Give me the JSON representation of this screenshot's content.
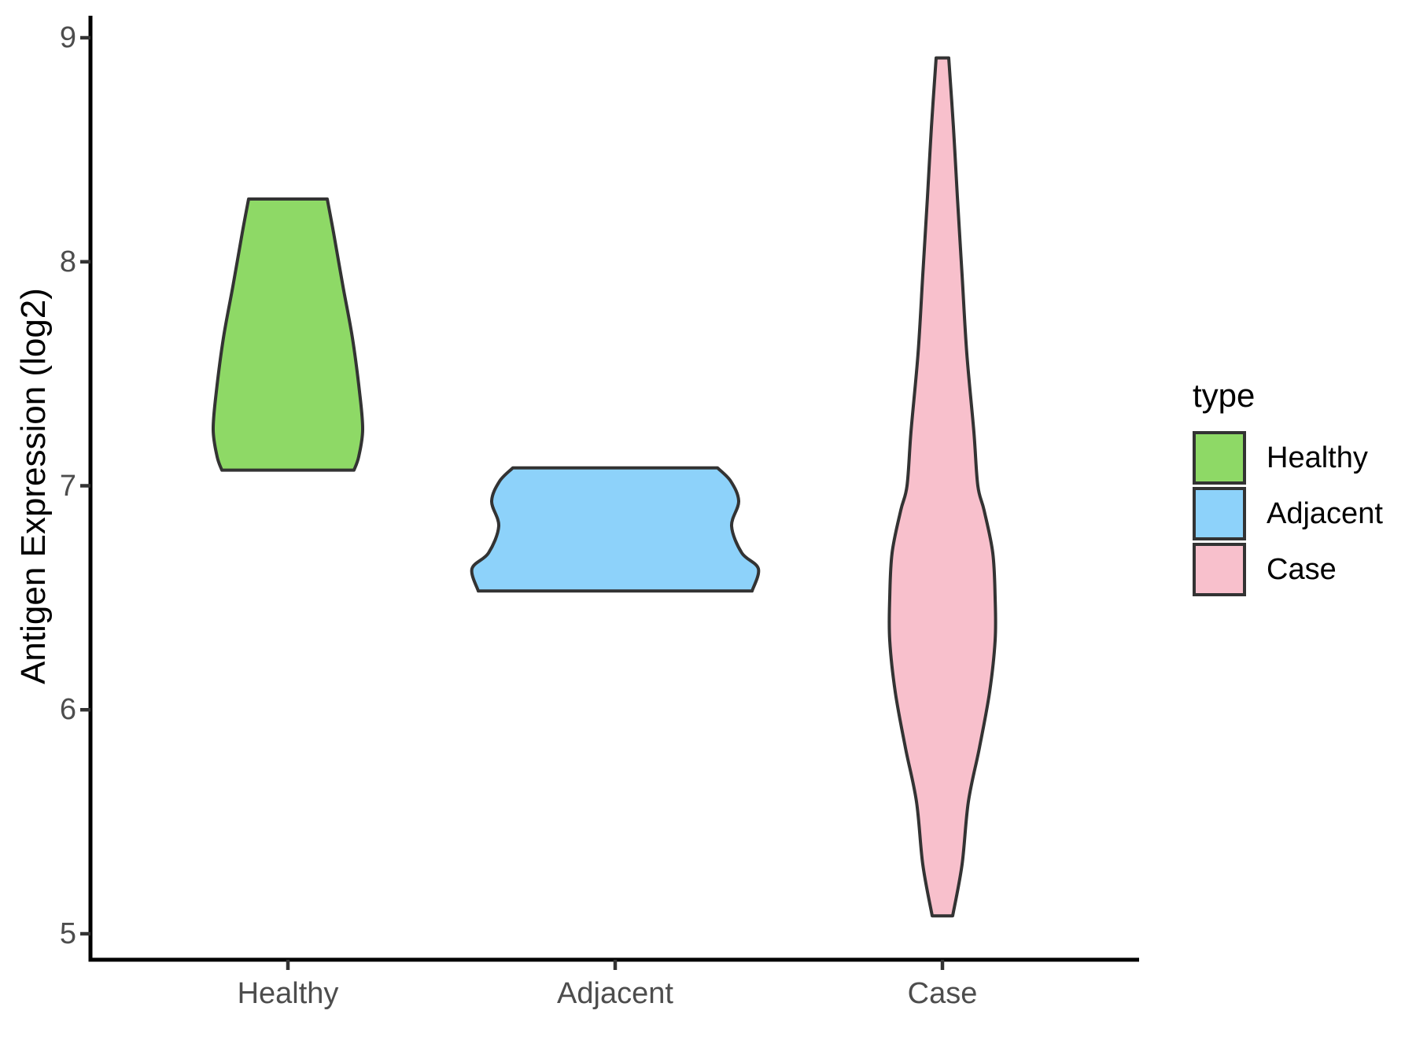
{
  "chart_data": {
    "type": "violin",
    "title": "",
    "grid": false,
    "panel_background": "#FFFFFF",
    "axis_color": "#000000",
    "tick_color": "#333333",
    "tick_label_color": "#4D4D4D",
    "outline_color": "#333333",
    "y_axis": {
      "label": "Antigen Expression (log2)",
      "tick_values": [
        9,
        8,
        7,
        6,
        5
      ],
      "tick_labels": [
        "9",
        "8",
        "7",
        "6",
        "5"
      ],
      "range": [
        4.9,
        9.1
      ]
    },
    "x_axis": {
      "label": "",
      "categories": [
        "Healthy",
        "Adjacent",
        "Case"
      ]
    },
    "legend": {
      "title": "type",
      "position": "right",
      "entries": [
        {
          "label": "Healthy",
          "color": "#8ED966"
        },
        {
          "label": "Adjacent",
          "color": "#8DD2FA"
        },
        {
          "label": "Case",
          "color": "#F8C0CC"
        }
      ]
    },
    "profile_format": "[y_value_log2, half_width_px]",
    "series": [
      {
        "name": "Healthy",
        "fill": "#8ED966",
        "observed_range": [
          7.07,
          8.28
        ],
        "profile": [
          [
            8.28,
            50
          ],
          [
            8.13,
            58
          ],
          [
            7.89,
            70
          ],
          [
            7.66,
            82
          ],
          [
            7.42,
            91
          ],
          [
            7.25,
            95
          ],
          [
            7.13,
            90
          ],
          [
            7.07,
            84
          ]
        ]
      },
      {
        "name": "Adjacent",
        "fill": "#8DD2FA",
        "observed_range": [
          6.53,
          7.08
        ],
        "profile": [
          [
            7.08,
            130
          ],
          [
            7.02,
            147
          ],
          [
            6.93,
            157
          ],
          [
            6.82,
            148
          ],
          [
            6.7,
            161
          ],
          [
            6.63,
            182
          ],
          [
            6.53,
            174
          ]
        ]
      },
      {
        "name": "Case",
        "fill": "#F8C0CC",
        "observed_range": [
          5.08,
          8.91
        ],
        "profile": [
          [
            8.91,
            8
          ],
          [
            8.6,
            14
          ],
          [
            8.29,
            19
          ],
          [
            7.94,
            25
          ],
          [
            7.59,
            31
          ],
          [
            7.24,
            40
          ],
          [
            7.0,
            45
          ],
          [
            6.89,
            53
          ],
          [
            6.7,
            64
          ],
          [
            6.5,
            67
          ],
          [
            6.31,
            67
          ],
          [
            6.08,
            60
          ],
          [
            5.83,
            47
          ],
          [
            5.59,
            33
          ],
          [
            5.31,
            25
          ],
          [
            5.08,
            13
          ]
        ]
      }
    ]
  }
}
